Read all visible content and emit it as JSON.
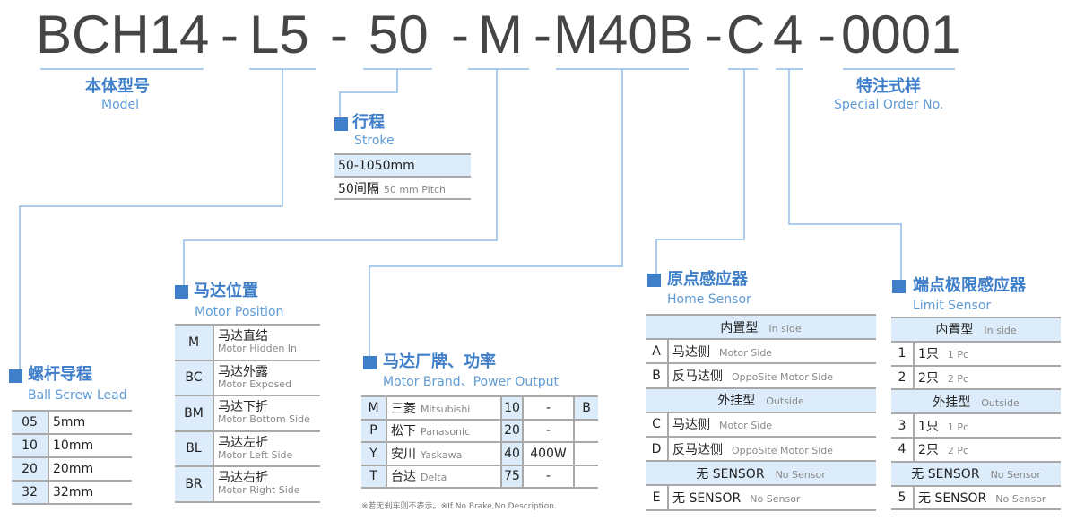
{
  "model_code": [
    "BCH14",
    "-",
    "L5",
    "-",
    "50",
    "-",
    "M",
    "-",
    "M40B",
    "-",
    "C",
    "4",
    "-",
    "0001"
  ],
  "colors": {
    "accent": "#3f7ec8",
    "cell_fill": "#dcecfb",
    "text": "#454545"
  },
  "model": {
    "cn": "本体型号",
    "en": "Model"
  },
  "special": {
    "cn": "特注式样",
    "en": "Special Order No."
  },
  "stroke": {
    "cn": "行程",
    "en": "Stroke",
    "rows": [
      {
        "main": "50-1050mm"
      },
      {
        "main": "50间隔",
        "sub": "50 mm Pitch"
      }
    ]
  },
  "ball_screw": {
    "cn": "螺杆导程",
    "en": "Ball Screw Lead",
    "rows": [
      {
        "code": "05",
        "value": "5mm"
      },
      {
        "code": "10",
        "value": "10mm"
      },
      {
        "code": "20",
        "value": "20mm"
      },
      {
        "code": "32",
        "value": "32mm"
      }
    ]
  },
  "motor_position": {
    "cn": "马达位置",
    "en": "Motor Position",
    "rows": [
      {
        "code": "M",
        "cn": "马达直结",
        "en": "Motor Hidden In"
      },
      {
        "code": "BC",
        "cn": "马达外露",
        "en": "Motor Exposed"
      },
      {
        "code": "BM",
        "cn": "马达下折",
        "en": "Motor Bottom Side"
      },
      {
        "code": "BL",
        "cn": "马达左折",
        "en": "Motor Left Side"
      },
      {
        "code": "BR",
        "cn": "马达右折",
        "en": "Motor Right Side"
      }
    ]
  },
  "motor_brand": {
    "cn": "马达厂牌、功率",
    "en": "Motor Brand、Power Output",
    "rows": [
      {
        "code": "M",
        "cn": "三菱",
        "en": "Mitsubishi",
        "power_code": "10",
        "power": "-",
        "brake": "B"
      },
      {
        "code": "P",
        "cn": "松下",
        "en": "Panasonic",
        "power_code": "20",
        "power": "-",
        "brake": ""
      },
      {
        "code": "Y",
        "cn": "安川",
        "en": "Yaskawa",
        "power_code": "40",
        "power": "400W",
        "brake": ""
      },
      {
        "code": "T",
        "cn": "台达",
        "en": "Delta",
        "power_code": "75",
        "power": "-",
        "brake": ""
      }
    ],
    "note": "※若无刹车则不表示。※If No Brake,No Description."
  },
  "home_sensor": {
    "cn": "原点感应器",
    "en": "Home Sensor",
    "rows": [
      {
        "header": true,
        "cn": "内置型",
        "en": "In side"
      },
      {
        "code": "A",
        "cn": "马达侧",
        "en": "Motor Side"
      },
      {
        "code": "B",
        "cn": "反马达侧",
        "en": "OppoSite Motor Side"
      },
      {
        "header": true,
        "cn": "外挂型",
        "en": "Outside"
      },
      {
        "code": "C",
        "cn": "马达侧",
        "en": "Motor Side"
      },
      {
        "code": "D",
        "cn": "反马达侧",
        "en": "OppoSite Motor Side"
      },
      {
        "header": true,
        "cn": "无 SENSOR",
        "en": "No Sensor"
      },
      {
        "code": "E",
        "cn": "无 SENSOR",
        "en": "No Sensor"
      }
    ]
  },
  "limit_sensor": {
    "cn": "端点极限感应器",
    "en": "Limit Sensor",
    "rows": [
      {
        "header": true,
        "cn": "内置型",
        "en": "In side"
      },
      {
        "code": "1",
        "cn": "1只",
        "en": "1 Pc"
      },
      {
        "code": "2",
        "cn": "2只",
        "en": "2 Pc"
      },
      {
        "header": true,
        "cn": "外挂型",
        "en": "Outside"
      },
      {
        "code": "3",
        "cn": "1只",
        "en": "1 Pc"
      },
      {
        "code": "4",
        "cn": "2只",
        "en": "2 Pc"
      },
      {
        "header": true,
        "cn": "无 SENSOR",
        "en": "No Sensor"
      },
      {
        "code": "5",
        "cn": "无 SENSOR",
        "en": "No Sensor"
      }
    ]
  }
}
